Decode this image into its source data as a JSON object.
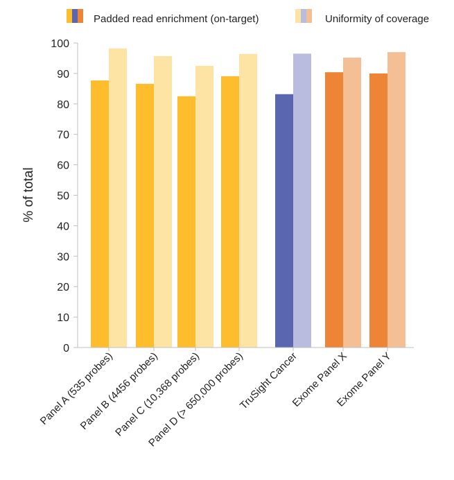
{
  "chart_data": {
    "type": "bar",
    "title": "",
    "xlabel": "",
    "ylabel": "% of total",
    "ylim": [
      0,
      100
    ],
    "yticks": [
      0,
      10,
      20,
      30,
      40,
      50,
      60,
      70,
      80,
      90,
      100
    ],
    "grid": false,
    "legend_position": "top",
    "categories": [
      "Panel A (535 probes)",
      "Panel B (4456 probes)",
      "Panel C (10,368 probes)",
      "Panel D (> 650,000 probes)",
      "TruSight Cancer",
      "Exome Panel X",
      "Exome Panel Y"
    ],
    "series": [
      {
        "name": "Padded read enrichment (on-target)",
        "values": [
          87.7,
          86.6,
          82.5,
          89.1,
          83.2,
          90.4,
          90.0
        ],
        "colors": [
          "#FDBD2C",
          "#FDBD2C",
          "#FDBD2C",
          "#FDBD2C",
          "#5A67B0",
          "#EE8435",
          "#EE8435"
        ]
      },
      {
        "name": "Uniformity of coverage",
        "values": [
          98.2,
          95.7,
          92.5,
          96.4,
          96.5,
          95.2,
          97.0
        ],
        "colors": [
          "#FEE4A4",
          "#FEE4A4",
          "#FEE4A4",
          "#FEE4A4",
          "#B9BCDF",
          "#F5BF96",
          "#F5BF96"
        ]
      }
    ],
    "legend_swatch_colors": [
      [
        "#FDBD2C",
        "#5A67B0",
        "#EE8435"
      ],
      [
        "#FEE4A4",
        "#B9BCDF",
        "#F5BF96"
      ]
    ]
  }
}
